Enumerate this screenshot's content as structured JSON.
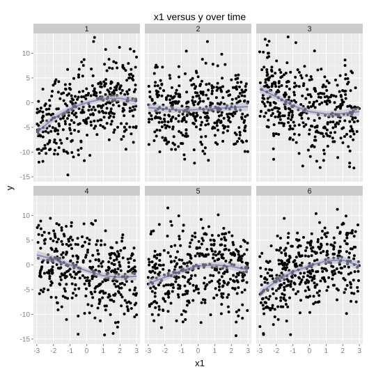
{
  "chart_data": {
    "type": "scatter",
    "title": "x1 versus y over time",
    "xlabel": "x1",
    "ylabel": "y",
    "xlim": [
      -3.2,
      3.2
    ],
    "ylim": [
      -16,
      14
    ],
    "x_ticks": [
      -3,
      -2,
      -1,
      0,
      1,
      2,
      3
    ],
    "y_ticks": [
      -15,
      -10,
      -5,
      0,
      5,
      10
    ],
    "grid": true,
    "layout": "facets 3 columns x 2 rows",
    "colors": {
      "panel_bg": "#ebebeb",
      "grid": "#ffffff",
      "strip_bg": "#cccccc",
      "point": "#000000",
      "smooth": "#5b5ea6",
      "ribbon": "#b8b8c8"
    },
    "points_per_panel": 400,
    "noise_sd": 4.3,
    "panels": [
      {
        "label": "1",
        "smooth": [
          [
            -3,
            -6
          ],
          [
            -2,
            -3.2
          ],
          [
            -1,
            -1.2
          ],
          [
            0,
            0
          ],
          [
            1,
            0.8
          ],
          [
            2,
            0.9
          ],
          [
            3,
            0.2
          ]
        ]
      },
      {
        "label": "2",
        "smooth": [
          [
            -3,
            -1
          ],
          [
            -2,
            -1.3
          ],
          [
            -1,
            -1.5
          ],
          [
            0,
            -1.4
          ],
          [
            1,
            -1.2
          ],
          [
            2,
            -1
          ],
          [
            3,
            -0.8
          ]
        ]
      },
      {
        "label": "3",
        "smooth": [
          [
            -3,
            2.8
          ],
          [
            -2,
            1.2
          ],
          [
            -1,
            -0.6
          ],
          [
            0,
            -1.8
          ],
          [
            1,
            -2.3
          ],
          [
            2,
            -2.2
          ],
          [
            3,
            -1.8
          ]
        ]
      },
      {
        "label": "4",
        "smooth": [
          [
            -3,
            2
          ],
          [
            -2,
            1.2
          ],
          [
            -1,
            0
          ],
          [
            0,
            -1.2
          ],
          [
            1,
            -2.2
          ],
          [
            2,
            -2.5
          ],
          [
            3,
            -2.3
          ]
        ]
      },
      {
        "label": "5",
        "smooth": [
          [
            -3,
            -3.8
          ],
          [
            -2,
            -2.5
          ],
          [
            -1,
            -1.2
          ],
          [
            0,
            -0.2
          ],
          [
            1,
            0
          ],
          [
            2,
            -0.3
          ],
          [
            3,
            -1
          ]
        ]
      },
      {
        "label": "6",
        "smooth": [
          [
            -3,
            -5.8
          ],
          [
            -2,
            -3.3
          ],
          [
            -1,
            -1.4
          ],
          [
            0,
            -0.2
          ],
          [
            1,
            0.8
          ],
          [
            2,
            1
          ],
          [
            3,
            -0.2
          ]
        ]
      }
    ]
  }
}
